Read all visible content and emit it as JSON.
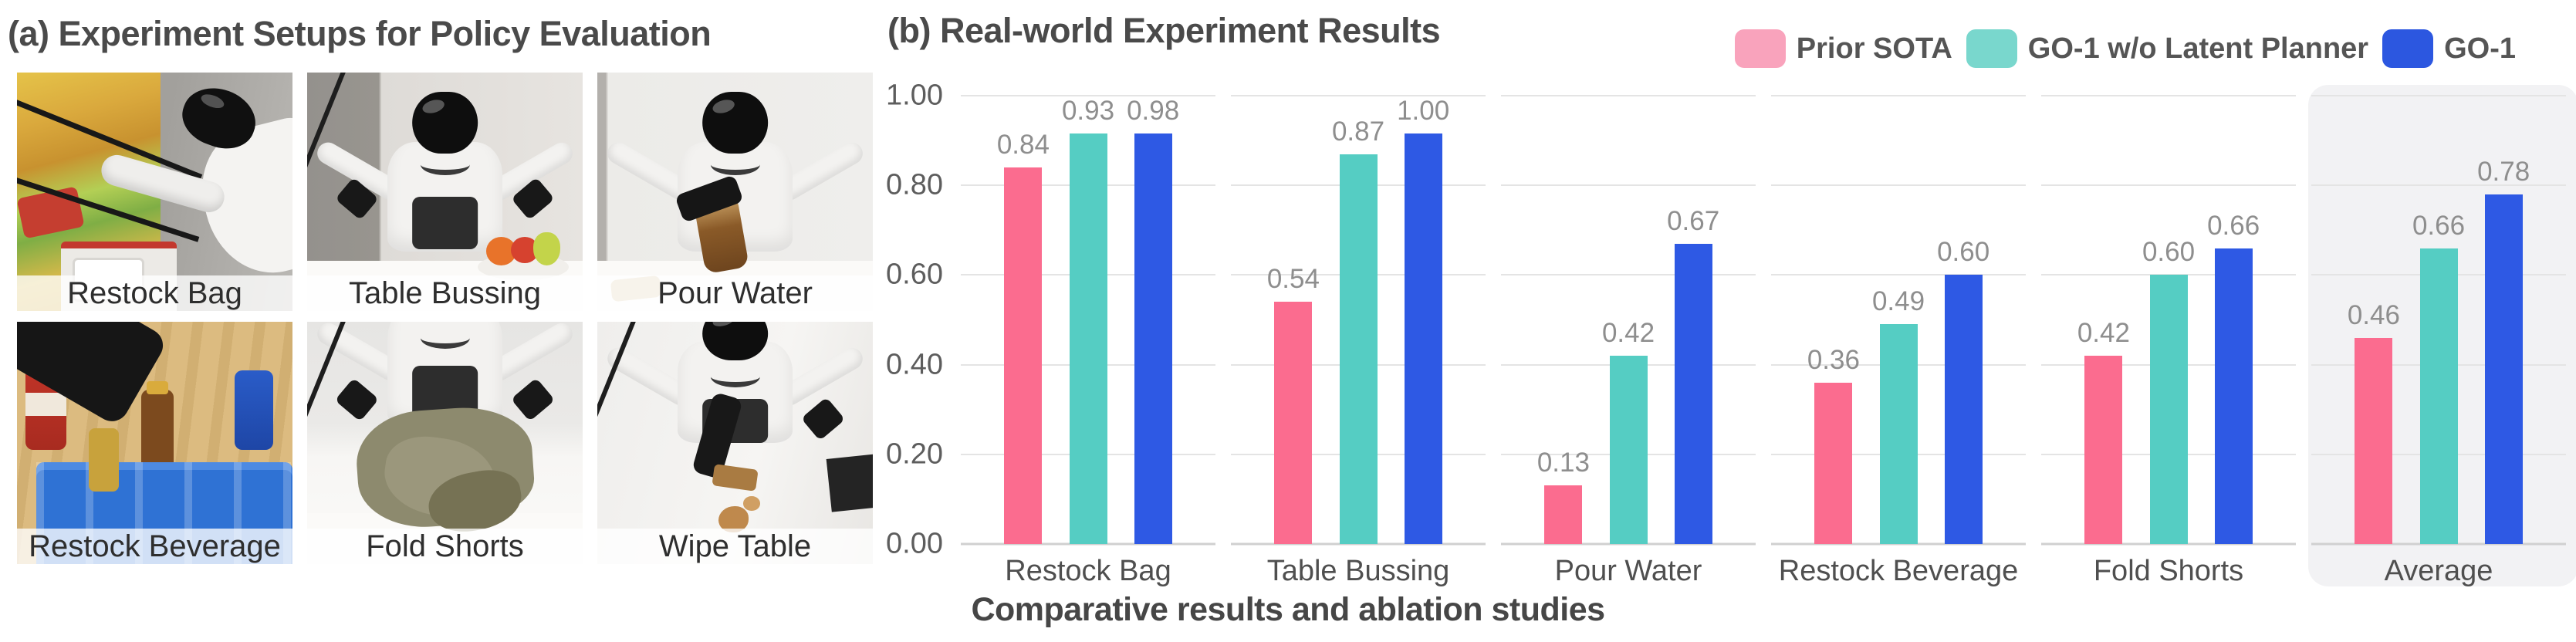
{
  "panel_a": {
    "title": "(a) Experiment Setups for Policy Evaluation",
    "setups": [
      {
        "label": "Restock Bag"
      },
      {
        "label": "Table Bussing"
      },
      {
        "label": "Pour Water"
      },
      {
        "label": "Restock Beverage"
      },
      {
        "label": "Fold Shorts"
      },
      {
        "label": "Wipe Table"
      }
    ]
  },
  "panel_b": {
    "title": "(b) Real-world Experiment Results",
    "caption": "Comparative results and ablation studies"
  },
  "chart_data": {
    "type": "bar",
    "title": "(b) Real-world Experiment Results",
    "categories": [
      "Restock Bag",
      "Table Bussing",
      "Pour Water",
      "Restock Beverage",
      "Fold Shorts",
      "Average"
    ],
    "series": [
      {
        "name": "Prior SOTA",
        "color": "#FB6C8F",
        "legend_color": "#F9A3BC",
        "values": [
          0.84,
          0.54,
          0.13,
          0.36,
          0.42,
          0.46
        ]
      },
      {
        "name": "GO-1 w/o Latent Planner",
        "color": "#55CDC3",
        "legend_color": "#79D7CD",
        "values": [
          0.93,
          0.87,
          0.42,
          0.49,
          0.6,
          0.66
        ]
      },
      {
        "name": "GO-1",
        "color": "#2E59E4",
        "legend_color": "#2C57E0",
        "values": [
          0.98,
          1.0,
          0.67,
          0.6,
          0.66,
          0.78
        ]
      }
    ],
    "xlabel": "",
    "ylabel": "",
    "ylim": [
      0,
      1.0
    ],
    "yticks": [
      "1.00",
      "0.80",
      "0.60",
      "0.40",
      "0.20",
      "0.00"
    ],
    "grid": "horizontal",
    "legend_position": "top-right",
    "highlight_category": "Average",
    "value_labels": true,
    "value_label_format": "0.00"
  }
}
